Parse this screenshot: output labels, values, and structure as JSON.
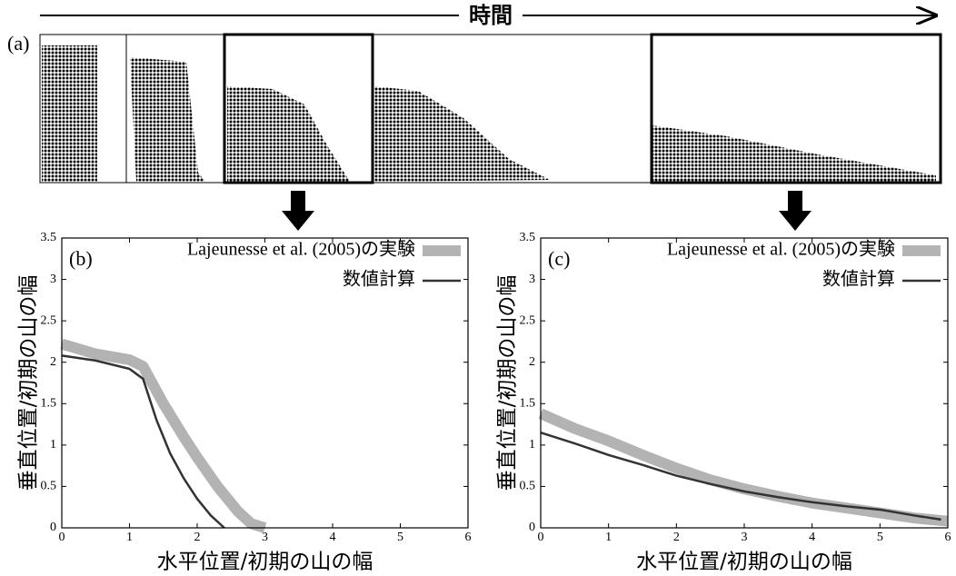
{
  "header": {
    "title": "時間",
    "panel_label": "(a)"
  },
  "chart_data": [
    {
      "type": "line",
      "panel_label": "(b)",
      "xlabel": "水平位置/初期の山の幅",
      "ylabel": "垂直位置/初期の山の幅",
      "xlim": [
        0,
        6
      ],
      "xticks": [
        0,
        1,
        2,
        3,
        4,
        5,
        6
      ],
      "ylim": [
        0,
        3.5
      ],
      "yticks": [
        0,
        0.5,
        1,
        1.5,
        2,
        2.5,
        3,
        3.5
      ],
      "legend": "upper right",
      "series": [
        {
          "name": "Lajeunesse et al. (2005)の実験",
          "color": "#b3b3b3",
          "linewidth": 12,
          "x": [
            0,
            0.5,
            1,
            1.2,
            1.5,
            1.8,
            2,
            2.3,
            2.6,
            2.8,
            3
          ],
          "values": [
            2.22,
            2.1,
            2.03,
            1.95,
            1.5,
            1.1,
            0.85,
            0.5,
            0.2,
            0.05,
            0
          ]
        },
        {
          "name": "数値計算",
          "color": "#333333",
          "linewidth": 2.5,
          "x": [
            0,
            0.5,
            1,
            1.2,
            1.4,
            1.6,
            1.8,
            2,
            2.2,
            2.4
          ],
          "values": [
            2.08,
            2.02,
            1.92,
            1.8,
            1.3,
            0.9,
            0.6,
            0.35,
            0.15,
            0
          ]
        }
      ]
    },
    {
      "type": "line",
      "panel_label": "(c)",
      "xlabel": "水平位置/初期の山の幅",
      "ylabel": "垂直位置/初期の山の幅",
      "xlim": [
        0,
        6
      ],
      "xticks": [
        0,
        1,
        2,
        3,
        4,
        5,
        6
      ],
      "ylim": [
        0,
        3.5
      ],
      "yticks": [
        0,
        0.5,
        1,
        1.5,
        2,
        2.5,
        3,
        3.5
      ],
      "legend": "upper right",
      "series": [
        {
          "name": "Lajeunesse et al. (2005)の実験",
          "color": "#b3b3b3",
          "linewidth": 12,
          "x": [
            0,
            0.5,
            1,
            1.5,
            2,
            2.5,
            3,
            3.5,
            4,
            4.5,
            5,
            5.5,
            6
          ],
          "values": [
            1.38,
            1.2,
            1.05,
            0.88,
            0.72,
            0.58,
            0.47,
            0.38,
            0.3,
            0.24,
            0.18,
            0.12,
            0.08
          ]
        },
        {
          "name": "数値計算",
          "color": "#333333",
          "linewidth": 2.5,
          "x": [
            0,
            0.5,
            1,
            1.5,
            2,
            2.5,
            3,
            3.5,
            4,
            4.5,
            5,
            5.5,
            5.9
          ],
          "values": [
            1.15,
            1.02,
            0.88,
            0.76,
            0.63,
            0.53,
            0.44,
            0.37,
            0.31,
            0.26,
            0.22,
            0.15,
            0.1
          ]
        }
      ]
    }
  ]
}
